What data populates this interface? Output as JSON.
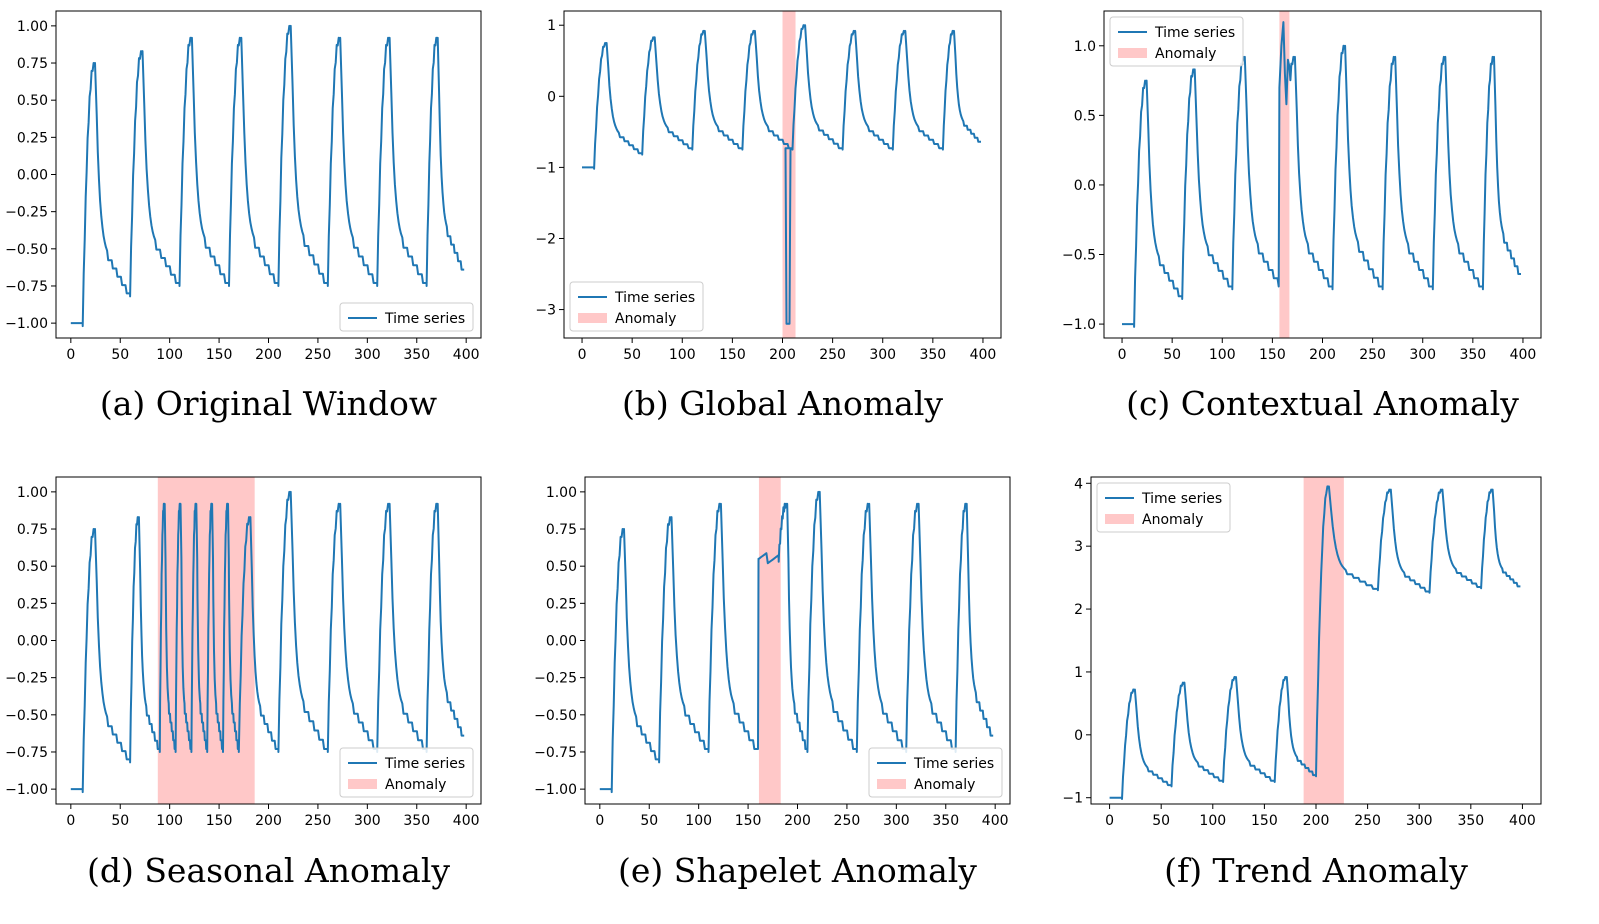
{
  "colors": {
    "series": "#1f77b4",
    "anomaly": "#ffc8c8",
    "axis": "#000000",
    "legend_border": "#cccccc"
  },
  "chart_data": [
    {
      "id": "a",
      "type": "line",
      "caption": "(a) Original Window",
      "xlim": [
        -15,
        415
      ],
      "ylim": [
        -1.1,
        1.1
      ],
      "xticks": [
        0,
        50,
        100,
        150,
        200,
        250,
        300,
        350,
        400
      ],
      "yticks": [
        -1.0,
        -0.75,
        -0.5,
        -0.25,
        0.0,
        0.25,
        0.5,
        0.75,
        1.0
      ],
      "ytick_labels": [
        "−1.00",
        "−0.75",
        "−0.50",
        "−0.25",
        "0.00",
        "0.25",
        "0.50",
        "0.75",
        "1.00"
      ],
      "legend": {
        "position": "lower-right",
        "entries": [
          "Time series"
        ]
      },
      "anomaly_spans": [],
      "series": {
        "name": "Time series",
        "baseline": -1.0,
        "start": 0,
        "rise_at": 12,
        "end": 400,
        "segments": [
          {
            "x0": 12,
            "x1": 60,
            "peak": 0.75,
            "low": -0.8
          },
          {
            "x0": 60,
            "x1": 110,
            "peak": 0.83,
            "low": -0.73
          },
          {
            "x0": 110,
            "x1": 160,
            "peak": 0.92,
            "low": -0.73
          },
          {
            "x0": 160,
            "x1": 210,
            "peak": 0.92,
            "low": -0.73
          },
          {
            "x0": 210,
            "x1": 260,
            "peak": 1.0,
            "low": -0.73
          },
          {
            "x0": 260,
            "x1": 310,
            "peak": 0.92,
            "low": -0.73
          },
          {
            "x0": 310,
            "x1": 360,
            "peak": 0.92,
            "low": -0.73
          },
          {
            "x0": 360,
            "x1": 398,
            "peak": 0.92,
            "low": -0.64
          }
        ]
      }
    },
    {
      "id": "b",
      "type": "line",
      "caption": "(b) Global Anomaly",
      "xlim": [
        -18,
        418
      ],
      "ylim": [
        -3.4,
        1.2
      ],
      "xticks": [
        0,
        50,
        100,
        150,
        200,
        250,
        300,
        350,
        400
      ],
      "yticks": [
        -3,
        -2,
        -1,
        0,
        1
      ],
      "ytick_labels": [
        "−3",
        "−2",
        "−1",
        "0",
        "1"
      ],
      "legend": {
        "position": "lower-left",
        "entries": [
          "Time series",
          "Anomaly"
        ]
      },
      "anomaly_spans": [
        [
          200,
          213
        ]
      ],
      "series": {
        "name": "Time series",
        "baseline": -1.0,
        "start": 0,
        "rise_at": 12,
        "end": 400,
        "segments": [
          {
            "x0": 12,
            "x1": 60,
            "peak": 0.75,
            "low": -0.8
          },
          {
            "x0": 60,
            "x1": 110,
            "peak": 0.83,
            "low": -0.73
          },
          {
            "x0": 110,
            "x1": 160,
            "peak": 0.92,
            "low": -0.73
          },
          {
            "x0": 160,
            "x1": 210,
            "peak": 0.92,
            "low": -0.73
          },
          {
            "x0": 210,
            "x1": 260,
            "peak": 1.0,
            "low": -0.73
          },
          {
            "x0": 260,
            "x1": 310,
            "peak": 0.92,
            "low": -0.73
          },
          {
            "x0": 310,
            "x1": 360,
            "peak": 0.92,
            "low": -0.73
          },
          {
            "x0": 360,
            "x1": 398,
            "peak": 0.92,
            "low": -0.64
          }
        ],
        "spike": {
          "x0": 203,
          "x1": 207,
          "y": -3.2
        }
      }
    },
    {
      "id": "c",
      "type": "line",
      "caption": "(c) Contextual Anomaly",
      "xlim": [
        -18,
        418
      ],
      "ylim": [
        -1.1,
        1.25
      ],
      "xticks": [
        0,
        50,
        100,
        150,
        200,
        250,
        300,
        350,
        400
      ],
      "yticks": [
        -1.0,
        -0.5,
        0.0,
        0.5,
        1.0
      ],
      "ytick_labels": [
        "−1.0",
        "−0.5",
        "0.0",
        "0.5",
        "1.0"
      ],
      "legend": {
        "position": "upper-left",
        "entries": [
          "Time series",
          "Anomaly"
        ]
      },
      "anomaly_spans": [
        [
          157,
          167
        ]
      ],
      "series": {
        "name": "Time series",
        "baseline": -1.0,
        "start": 0,
        "rise_at": 12,
        "end": 400,
        "segments": [
          {
            "x0": 12,
            "x1": 60,
            "peak": 0.75,
            "low": -0.8
          },
          {
            "x0": 60,
            "x1": 110,
            "peak": 0.83,
            "low": -0.73
          },
          {
            "x0": 110,
            "x1": 160,
            "peak": 0.92,
            "low": -0.73
          },
          {
            "x0": 160,
            "x1": 210,
            "peak": 0.92,
            "low": -0.73
          },
          {
            "x0": 210,
            "x1": 260,
            "peak": 1.0,
            "low": -0.73
          },
          {
            "x0": 260,
            "x1": 310,
            "peak": 0.92,
            "low": -0.73
          },
          {
            "x0": 310,
            "x1": 360,
            "peak": 0.92,
            "low": -0.73
          },
          {
            "x0": 360,
            "x1": 398,
            "peak": 0.92,
            "low": -0.64
          }
        ],
        "context": {
          "x0": 157,
          "x1": 167,
          "peak": 1.17,
          "dip": 0.58
        }
      }
    },
    {
      "id": "d",
      "type": "line",
      "caption": "(d) Seasonal Anomaly",
      "xlim": [
        -15,
        415
      ],
      "ylim": [
        -1.1,
        1.1
      ],
      "xticks": [
        0,
        50,
        100,
        150,
        200,
        250,
        300,
        350,
        400
      ],
      "yticks": [
        -1.0,
        -0.75,
        -0.5,
        -0.25,
        0.0,
        0.25,
        0.5,
        0.75,
        1.0
      ],
      "ytick_labels": [
        "−1.00",
        "−0.75",
        "−0.50",
        "−0.25",
        "0.00",
        "0.25",
        "0.50",
        "0.75",
        "1.00"
      ],
      "legend": {
        "position": "lower-right",
        "entries": [
          "Time series",
          "Anomaly"
        ]
      },
      "anomaly_spans": [
        [
          88,
          186
        ]
      ],
      "series": {
        "name": "Time series",
        "baseline": -1.0,
        "start": 0,
        "rise_at": 12,
        "end": 400,
        "segments": [
          {
            "x0": 12,
            "x1": 60,
            "peak": 0.75,
            "low": -0.8
          },
          {
            "x0": 60,
            "x1": 90,
            "peak": 0.83,
            "low": -0.73
          },
          {
            "x0": 90,
            "x1": 106,
            "peak": 0.92,
            "low": -0.73
          },
          {
            "x0": 106,
            "x1": 122,
            "peak": 0.92,
            "low": -0.73
          },
          {
            "x0": 122,
            "x1": 138,
            "peak": 0.92,
            "low": -0.73
          },
          {
            "x0": 138,
            "x1": 154,
            "peak": 0.92,
            "low": -0.73
          },
          {
            "x0": 154,
            "x1": 170,
            "peak": 0.92,
            "low": -0.73
          },
          {
            "x0": 170,
            "x1": 210,
            "peak": 0.83,
            "low": -0.73
          },
          {
            "x0": 210,
            "x1": 260,
            "peak": 1.0,
            "low": -0.73
          },
          {
            "x0": 260,
            "x1": 310,
            "peak": 0.92,
            "low": -0.73
          },
          {
            "x0": 310,
            "x1": 360,
            "peak": 0.92,
            "low": -0.73
          },
          {
            "x0": 360,
            "x1": 398,
            "peak": 0.92,
            "low": -0.64
          }
        ]
      }
    },
    {
      "id": "e",
      "type": "line",
      "caption": "(e) Shapelet Anomaly",
      "xlim": [
        -15,
        415
      ],
      "ylim": [
        -1.1,
        1.1
      ],
      "xticks": [
        0,
        50,
        100,
        150,
        200,
        250,
        300,
        350,
        400
      ],
      "yticks": [
        -1.0,
        -0.75,
        -0.5,
        -0.25,
        0.0,
        0.25,
        0.5,
        0.75,
        1.0
      ],
      "ytick_labels": [
        "−1.00",
        "−0.75",
        "−0.50",
        "−0.25",
        "0.00",
        "0.25",
        "0.50",
        "0.75",
        "1.00"
      ],
      "legend": {
        "position": "lower-right",
        "entries": [
          "Time series",
          "Anomaly"
        ]
      },
      "anomaly_spans": [
        [
          161,
          183
        ]
      ],
      "series": {
        "name": "Time series",
        "baseline": -1.0,
        "start": 0,
        "rise_at": 12,
        "end": 400,
        "segments": [
          {
            "x0": 12,
            "x1": 60,
            "peak": 0.75,
            "low": -0.8
          },
          {
            "x0": 60,
            "x1": 110,
            "peak": 0.83,
            "low": -0.73
          },
          {
            "x0": 110,
            "x1": 160,
            "peak": 0.92,
            "low": -0.73
          },
          {
            "x0": 210,
            "x1": 260,
            "peak": 1.0,
            "low": -0.73
          },
          {
            "x0": 260,
            "x1": 310,
            "peak": 0.92,
            "low": -0.73
          },
          {
            "x0": 310,
            "x1": 360,
            "peak": 0.92,
            "low": -0.73
          },
          {
            "x0": 360,
            "x1": 398,
            "peak": 0.92,
            "low": -0.64
          }
        ],
        "plateau": {
          "x0": 160,
          "x1": 181,
          "y": 0.55
        },
        "after_plateau": {
          "x0": 181,
          "x1": 210,
          "peak": 0.92,
          "low": -0.73
        }
      }
    },
    {
      "id": "f",
      "type": "line",
      "caption": "(f) Trend Anomaly",
      "xlim": [
        -18,
        418
      ],
      "ylim": [
        -1.1,
        4.1
      ],
      "xticks": [
        0,
        50,
        100,
        150,
        200,
        250,
        300,
        350,
        400
      ],
      "yticks": [
        -1,
        0,
        1,
        2,
        3,
        4
      ],
      "ytick_labels": [
        "−1",
        "0",
        "1",
        "2",
        "3",
        "4"
      ],
      "legend": {
        "position": "upper-left",
        "entries": [
          "Time series",
          "Anomaly"
        ]
      },
      "anomaly_spans": [
        [
          188,
          227
        ]
      ],
      "series": {
        "name": "Time series",
        "baseline": -1.0,
        "start": 0,
        "rise_at": 12,
        "end": 400,
        "segments": [
          {
            "x0": 12,
            "x1": 60,
            "peak": 0.72,
            "low": -0.8
          },
          {
            "x0": 60,
            "x1": 110,
            "peak": 0.83,
            "low": -0.73
          },
          {
            "x0": 110,
            "x1": 160,
            "peak": 0.92,
            "low": -0.73
          },
          {
            "x0": 160,
            "x1": 200,
            "peak": 0.92,
            "low": -0.64
          },
          {
            "x0": 200,
            "x1": 260,
            "peak": 3.95,
            "low": 2.32,
            "offset": 3.0
          },
          {
            "x0": 260,
            "x1": 310,
            "peak": 3.9,
            "low": 2.28
          },
          {
            "x0": 310,
            "x1": 360,
            "peak": 3.9,
            "low": 2.35
          },
          {
            "x0": 360,
            "x1": 398,
            "peak": 3.9,
            "low": 2.36
          }
        ]
      }
    }
  ]
}
